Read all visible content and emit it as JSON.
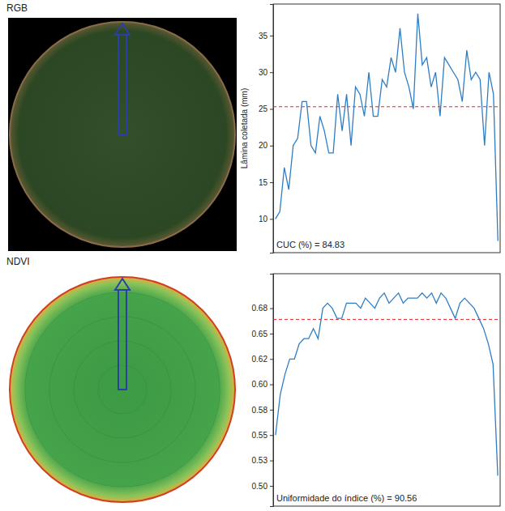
{
  "chart_data": [
    {
      "type": "line",
      "title": "RGB",
      "y_label": "Lâmina coletada (mm)",
      "ylim": [
        5.4,
        39.3
      ],
      "yticks": [
        10,
        15,
        20,
        25,
        30,
        35
      ],
      "tick_labels": "y",
      "series": [
        {
          "color": "#2f7ec4",
          "values": [
            10,
            11,
            17,
            14,
            20,
            21,
            26,
            26,
            20,
            19,
            24,
            22,
            19,
            19,
            27,
            22,
            27,
            20,
            28,
            27,
            24,
            30,
            24,
            24,
            29,
            28,
            32,
            30,
            36,
            30,
            28,
            25,
            38,
            31,
            32,
            28,
            30,
            24,
            32,
            31,
            30,
            29,
            26,
            33,
            29,
            30,
            29,
            20,
            30,
            27,
            7
          ]
        }
      ],
      "reference_line": 25.3,
      "annotation": "CUC (%) = 84.83"
    },
    {
      "type": "line",
      "title": "NDVI",
      "ylim": [
        0.48,
        0.709
      ],
      "yticks": [
        {
          "value": 0.5,
          "label": "0.50"
        },
        {
          "value": 0.525,
          "label": "0.53"
        },
        {
          "value": 0.55,
          "label": "0.55"
        },
        {
          "value": 0.575,
          "label": "0.58"
        },
        {
          "value": 0.6,
          "label": "0.60"
        },
        {
          "value": 0.625,
          "label": "0.62"
        },
        {
          "value": 0.65,
          "label": "0.65"
        },
        {
          "value": 0.675,
          "label": "0.68"
        }
      ],
      "tick_labels": "y",
      "series": [
        {
          "color": "#2f7ec4",
          "values": [
            0.55,
            0.59,
            0.61,
            0.625,
            0.625,
            0.64,
            0.645,
            0.645,
            0.655,
            0.645,
            0.675,
            0.68,
            0.675,
            0.665,
            0.665,
            0.68,
            0.68,
            0.68,
            0.675,
            0.685,
            0.68,
            0.675,
            0.685,
            0.69,
            0.68,
            0.685,
            0.69,
            0.68,
            0.685,
            0.685,
            0.685,
            0.69,
            0.685,
            0.69,
            0.68,
            0.69,
            0.685,
            0.675,
            0.665,
            0.68,
            0.685,
            0.68,
            0.675,
            0.665,
            0.655,
            0.64,
            0.62,
            0.51
          ]
        }
      ],
      "reference_line": 0.664,
      "annotation": "Uniformidade do índice (%) = 90.56"
    }
  ]
}
